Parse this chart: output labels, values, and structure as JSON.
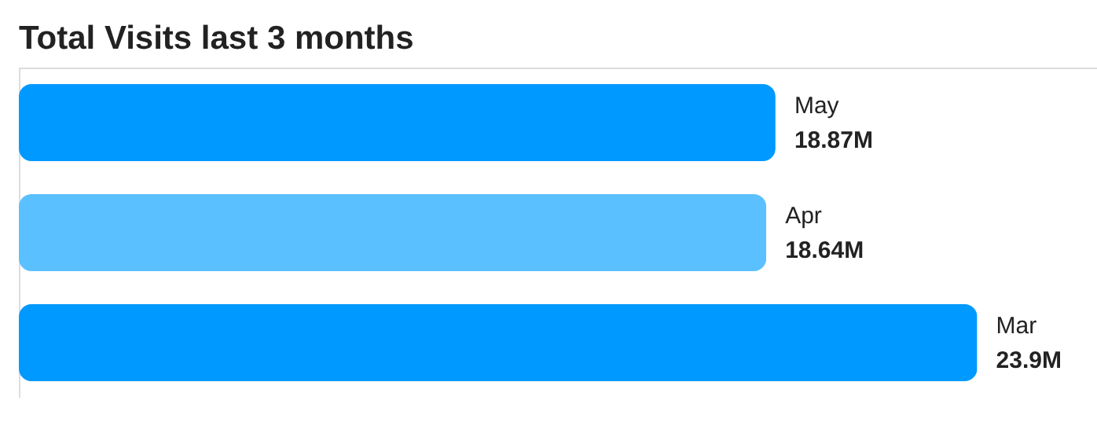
{
  "chart_data": {
    "type": "bar",
    "orientation": "horizontal",
    "title": "Total Visits last 3 months",
    "categories": [
      "May",
      "Apr",
      "Mar"
    ],
    "values": [
      18.87,
      18.64,
      23.9
    ],
    "colors": [
      "#0099ff",
      "#5bc0ff",
      "#0099ff"
    ],
    "value_labels": [
      "18.87M",
      "18.64M",
      "23.9M"
    ]
  }
}
